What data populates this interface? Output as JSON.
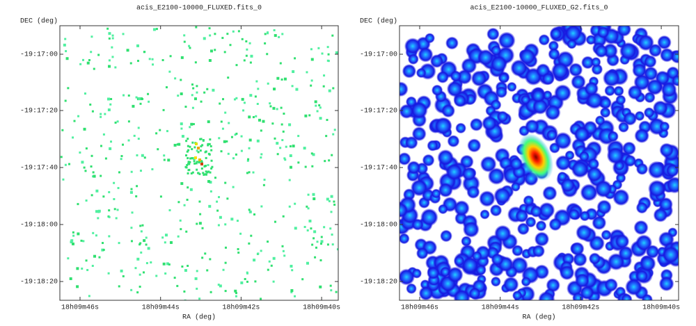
{
  "panels": [
    {
      "title": "acis_E2100-10000_FLUXED.fits_0",
      "y_label": "DEC (deg)",
      "x_label": "RA (deg)",
      "x_ticks": [
        "18h09m46s",
        "18h09m44s",
        "18h09m42s",
        "18h09m40s"
      ],
      "y_ticks": [
        "-19:17:00",
        "-19:17:20",
        "-19:17:40",
        "-19:18:00",
        "-19:18:20"
      ]
    },
    {
      "title": "acis_E2100-10000_FLUXED_G2.fits_0",
      "y_label": "DEC (deg)",
      "x_label": "RA (deg)",
      "x_ticks": [
        "18h09m46s",
        "18h09m44s",
        "18h09m42s",
        "18h09m40s"
      ],
      "y_ticks": [
        "-19:17:00",
        "-19:17:20",
        "-19:17:40",
        "-19:18:00",
        "-19:18:20"
      ]
    }
  ]
}
